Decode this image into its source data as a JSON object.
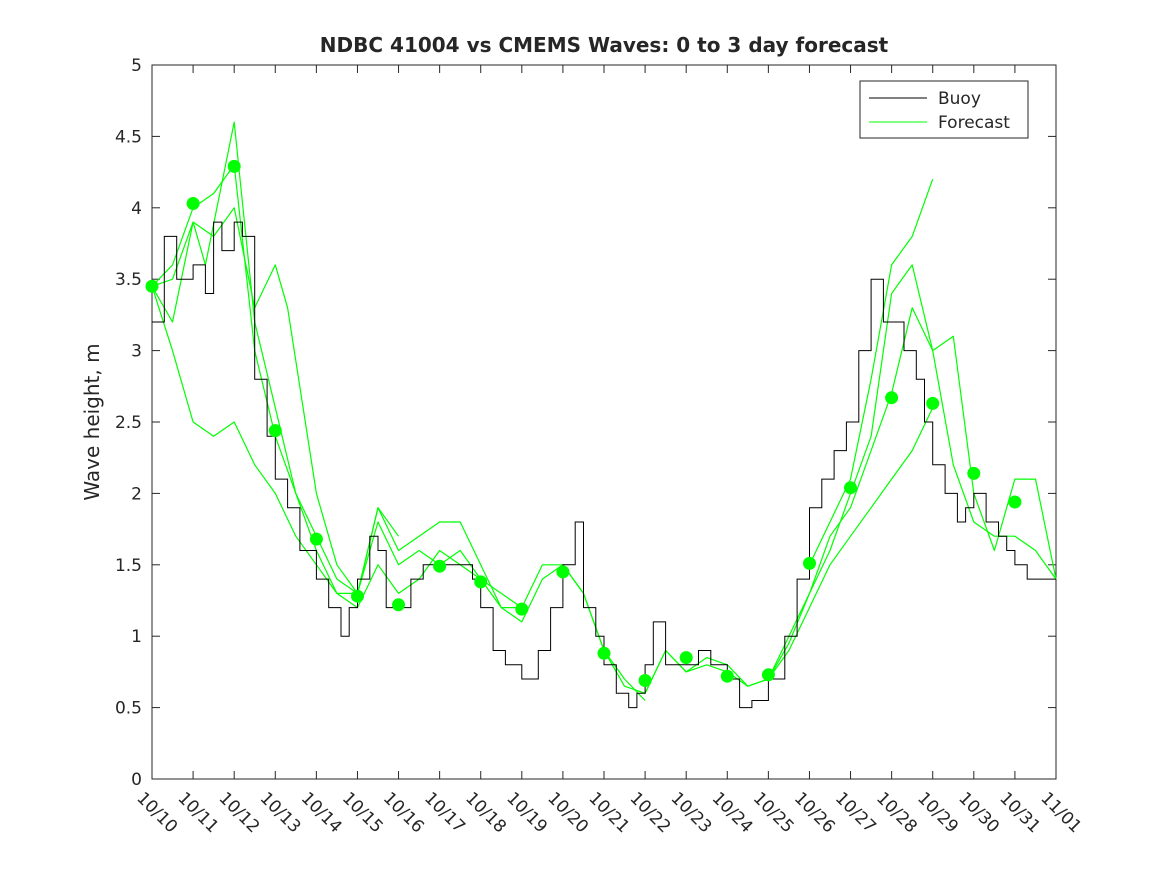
{
  "chart_data": {
    "type": "line",
    "title": "NDBC 41004 vs CMEMS Waves: 0 to 3 day forecast",
    "ylabel": "Wave height, m",
    "xlabel": "",
    "ylim": [
      0,
      5
    ],
    "xlim": [
      "10/10",
      "11/01"
    ],
    "x_ticks": [
      "10/10",
      "10/11",
      "10/12",
      "10/13",
      "10/14",
      "10/15",
      "10/16",
      "10/17",
      "10/18",
      "10/19",
      "10/20",
      "10/21",
      "10/22",
      "10/23",
      "10/24",
      "10/25",
      "10/26",
      "10/27",
      "10/28",
      "10/29",
      "10/30",
      "10/31",
      "11/01"
    ],
    "y_ticks": [
      "0",
      "0.5",
      "1",
      "1.5",
      "2",
      "2.5",
      "3",
      "3.5",
      "4",
      "4.5",
      "5"
    ],
    "legend": {
      "placement": "top-right",
      "entries": [
        {
          "name": "Buoy",
          "color": "#000000"
        },
        {
          "name": "Forecast",
          "color": "#00ff00"
        }
      ]
    },
    "grid": false,
    "colors": {
      "buoy": "#000000",
      "forecast": "#00ff00",
      "axes": "#262626"
    },
    "buoy_series": {
      "name": "Buoy",
      "x_day_offset": [
        0,
        0.3,
        0.6,
        1,
        1.3,
        1.5,
        1.7,
        2,
        2.2,
        2.5,
        2.8,
        3,
        3.3,
        3.6,
        4,
        4.3,
        4.6,
        4.8,
        5,
        5.3,
        5.5,
        5.7,
        6,
        6.3,
        6.6,
        7,
        7.4,
        7.8,
        8,
        8.3,
        8.6,
        9,
        9.4,
        9.7,
        10,
        10.3,
        10.5,
        10.8,
        11,
        11.3,
        11.6,
        11.8,
        12,
        12.2,
        12.5,
        12.7,
        13,
        13.3,
        13.6,
        14,
        14.3,
        14.6,
        15,
        15.4,
        15.7,
        16,
        16.3,
        16.6,
        16.9,
        17.2,
        17.5,
        17.8,
        18,
        18.3,
        18.6,
        18.8,
        19,
        19.3,
        19.6,
        19.8,
        20,
        20.3,
        20.6,
        20.8,
        21,
        21.3,
        21.6,
        22
      ],
      "y": [
        3.2,
        3.8,
        3.5,
        3.6,
        3.4,
        3.9,
        3.7,
        3.9,
        3.8,
        2.8,
        2.4,
        2.1,
        1.9,
        1.6,
        1.4,
        1.2,
        1.0,
        1.2,
        1.4,
        1.7,
        1.6,
        1.2,
        1.2,
        1.4,
        1.5,
        1.5,
        1.5,
        1.4,
        1.2,
        0.9,
        0.8,
        0.7,
        0.9,
        1.2,
        1.5,
        1.8,
        1.2,
        1.0,
        0.8,
        0.6,
        0.5,
        0.6,
        0.8,
        1.1,
        0.8,
        0.8,
        0.8,
        0.9,
        0.8,
        0.7,
        0.5,
        0.55,
        0.7,
        1.0,
        1.4,
        1.9,
        2.1,
        2.3,
        2.5,
        3.0,
        3.5,
        3.2,
        3.2,
        3.0,
        2.8,
        2.5,
        2.2,
        2.0,
        1.8,
        1.9,
        2.0,
        1.8,
        1.7,
        1.6,
        1.5,
        1.4,
        1.4,
        1.4
      ]
    },
    "forecast_series": [
      {
        "x_day_offset": [
          0,
          0.5,
          1,
          1.5,
          2,
          2.5,
          3,
          3.5,
          4,
          4.5,
          5,
          5.5,
          6
        ],
        "y": [
          3.45,
          3.6,
          4.0,
          4.1,
          4.3,
          3.0,
          2.4,
          2.0,
          1.6,
          1.3,
          1.3,
          1.9,
          1.7
        ]
      },
      {
        "x_day_offset": [
          0,
          0.5,
          1,
          1.3,
          2,
          2.5,
          3,
          3.5,
          4,
          4.5,
          5,
          5.5,
          6,
          6.5,
          7,
          7.5,
          8,
          8.5,
          9
        ],
        "y": [
          3.45,
          3.5,
          3.9,
          3.6,
          4.6,
          3.2,
          2.6,
          2.0,
          1.7,
          1.4,
          1.3,
          1.9,
          1.6,
          1.7,
          1.8,
          1.8,
          1.5,
          1.2,
          1.2
        ]
      },
      {
        "x_day_offset": [
          0,
          0.5,
          1,
          1.5,
          2,
          2.5,
          3,
          3.3,
          4,
          4.5,
          5,
          5.5,
          6,
          6.5,
          7,
          7.5,
          8,
          8.5,
          9,
          9.5,
          10,
          10.5,
          11,
          11.5,
          12
        ],
        "y": [
          3.45,
          3.2,
          3.9,
          3.8,
          4.0,
          3.3,
          3.6,
          3.3,
          2.0,
          1.5,
          1.3,
          1.8,
          1.5,
          1.6,
          1.5,
          1.6,
          1.4,
          1.2,
          1.1,
          1.4,
          1.5,
          1.3,
          0.9,
          0.7,
          0.55
        ]
      },
      {
        "x_day_offset": [
          0,
          0.5,
          1,
          1.5,
          2,
          2.5,
          3,
          3.5,
          4,
          4.5,
          5,
          5.5,
          6,
          6.5,
          7,
          7.5,
          8,
          8.5,
          9,
          9.5,
          10,
          10.5,
          11,
          11.5,
          12,
          12.5,
          13,
          13.5,
          14,
          14.5,
          15,
          15.5,
          16,
          16.5,
          17,
          17.5,
          18,
          18.5,
          19
        ],
        "y": [
          3.45,
          3.0,
          2.5,
          2.4,
          2.5,
          2.2,
          2.0,
          1.7,
          1.5,
          1.3,
          1.2,
          1.5,
          1.3,
          1.4,
          1.6,
          1.5,
          1.4,
          1.3,
          1.2,
          1.5,
          1.5,
          1.3,
          0.9,
          0.65,
          0.6,
          0.9,
          0.75,
          0.8,
          0.75,
          0.65,
          0.7,
          0.9,
          1.2,
          1.5,
          1.7,
          1.9,
          2.1,
          2.3,
          2.6
        ]
      },
      {
        "x_day_offset": [
          12,
          12.5,
          13,
          13.5,
          14,
          14.5,
          15,
          15.5,
          16,
          16.5,
          17,
          17.5,
          18,
          18.5,
          19,
          19.5,
          20,
          20.5,
          21,
          21.5,
          22
        ],
        "y": [
          0.6,
          0.9,
          0.75,
          0.85,
          0.8,
          0.65,
          0.7,
          1.0,
          1.3,
          1.7,
          1.9,
          2.3,
          2.7,
          3.3,
          3.0,
          2.2,
          1.8,
          1.7,
          1.7,
          1.6,
          1.4
        ]
      },
      {
        "x_day_offset": [
          15,
          15.5,
          16,
          16.5,
          17,
          17.5,
          18,
          18.5,
          19,
          19.5,
          20,
          20.5,
          21,
          21.5,
          22
        ],
        "y": [
          0.7,
          0.95,
          1.3,
          1.6,
          2.0,
          2.4,
          3.4,
          3.6,
          3.0,
          3.1,
          2.0,
          1.6,
          2.1,
          2.1,
          1.4
        ]
      },
      {
        "x_day_offset": [
          16,
          16.5,
          17,
          17.5,
          18,
          18.5,
          19
        ],
        "y": [
          1.5,
          1.8,
          2.1,
          2.8,
          3.6,
          3.8,
          4.2
        ]
      }
    ],
    "daily_markers": {
      "x_day_offset": [
        0,
        1,
        2,
        3,
        4,
        5,
        6,
        7,
        8,
        9,
        10,
        11,
        12,
        13,
        14,
        15,
        16,
        17,
        18,
        19,
        20,
        21
      ],
      "y": [
        3.45,
        4.03,
        4.29,
        2.44,
        1.68,
        1.28,
        1.22,
        1.49,
        1.38,
        1.19,
        1.45,
        0.88,
        0.69,
        0.85,
        0.72,
        0.73,
        1.51,
        2.04,
        2.67,
        2.63,
        2.14,
        1.94
      ]
    }
  }
}
